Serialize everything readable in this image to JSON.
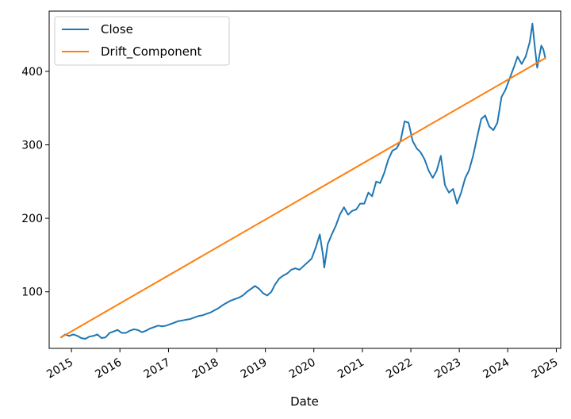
{
  "chart_data": {
    "type": "line",
    "title": "",
    "xlabel": "Date",
    "ylabel": "",
    "x_ticks": [
      "2015",
      "2016",
      "2017",
      "2018",
      "2019",
      "2020",
      "2021",
      "2022",
      "2023",
      "2024",
      "2025"
    ],
    "y_ticks": [
      100,
      200,
      300,
      400
    ],
    "xlim": [
      "2014-07-17",
      "2025-02-03"
    ],
    "ylim": [
      23,
      482
    ],
    "grid": false,
    "legend": {
      "position": "top-left"
    },
    "colors": {
      "Close": "#1f77b4",
      "Drift_Component": "#ff7f0e"
    },
    "series": [
      {
        "name": "Close",
        "points": [
          [
            "2014-10-15",
            38
          ],
          [
            "2014-11-15",
            42
          ],
          [
            "2014-12-15",
            40
          ],
          [
            "2015-01-15",
            42
          ],
          [
            "2015-02-15",
            40
          ],
          [
            "2015-03-15",
            37
          ],
          [
            "2015-04-15",
            36
          ],
          [
            "2015-05-15",
            39
          ],
          [
            "2015-06-15",
            40
          ],
          [
            "2015-07-15",
            42
          ],
          [
            "2015-08-15",
            37
          ],
          [
            "2015-09-15",
            38
          ],
          [
            "2015-10-15",
            44
          ],
          [
            "2015-11-15",
            46
          ],
          [
            "2015-12-15",
            48
          ],
          [
            "2016-01-15",
            44
          ],
          [
            "2016-02-15",
            44
          ],
          [
            "2016-03-15",
            47
          ],
          [
            "2016-04-15",
            49
          ],
          [
            "2016-05-15",
            48
          ],
          [
            "2016-06-15",
            45
          ],
          [
            "2016-07-15",
            47
          ],
          [
            "2016-08-15",
            50
          ],
          [
            "2016-09-15",
            52
          ],
          [
            "2016-10-15",
            54
          ],
          [
            "2016-11-15",
            53
          ],
          [
            "2016-12-15",
            54
          ],
          [
            "2017-01-15",
            56
          ],
          [
            "2017-02-15",
            58
          ],
          [
            "2017-03-15",
            60
          ],
          [
            "2017-04-15",
            61
          ],
          [
            "2017-05-15",
            62
          ],
          [
            "2017-06-15",
            63
          ],
          [
            "2017-07-15",
            65
          ],
          [
            "2017-08-15",
            67
          ],
          [
            "2017-09-15",
            68
          ],
          [
            "2017-10-15",
            70
          ],
          [
            "2017-11-15",
            72
          ],
          [
            "2017-12-15",
            75
          ],
          [
            "2018-01-15",
            78
          ],
          [
            "2018-02-15",
            82
          ],
          [
            "2018-03-15",
            85
          ],
          [
            "2018-04-15",
            88
          ],
          [
            "2018-05-15",
            90
          ],
          [
            "2018-06-15",
            92
          ],
          [
            "2018-07-15",
            95
          ],
          [
            "2018-08-15",
            100
          ],
          [
            "2018-09-15",
            104
          ],
          [
            "2018-10-15",
            108
          ],
          [
            "2018-11-15",
            104
          ],
          [
            "2018-12-15",
            98
          ],
          [
            "2019-01-15",
            95
          ],
          [
            "2019-02-15",
            100
          ],
          [
            "2019-03-15",
            110
          ],
          [
            "2019-04-15",
            118
          ],
          [
            "2019-05-15",
            122
          ],
          [
            "2019-06-15",
            125
          ],
          [
            "2019-07-15",
            130
          ],
          [
            "2019-08-15",
            132
          ],
          [
            "2019-09-15",
            130
          ],
          [
            "2019-10-15",
            135
          ],
          [
            "2019-11-15",
            140
          ],
          [
            "2019-12-15",
            145
          ],
          [
            "2020-01-15",
            160
          ],
          [
            "2020-02-15",
            178
          ],
          [
            "2020-03-10",
            150
          ],
          [
            "2020-03-20",
            133
          ],
          [
            "2020-04-15",
            165
          ],
          [
            "2020-05-15",
            178
          ],
          [
            "2020-06-15",
            190
          ],
          [
            "2020-07-15",
            205
          ],
          [
            "2020-08-15",
            215
          ],
          [
            "2020-09-15",
            205
          ],
          [
            "2020-10-15",
            210
          ],
          [
            "2020-11-15",
            212
          ],
          [
            "2020-12-15",
            220
          ],
          [
            "2021-01-15",
            220
          ],
          [
            "2021-02-15",
            235
          ],
          [
            "2021-03-15",
            230
          ],
          [
            "2021-04-15",
            250
          ],
          [
            "2021-05-15",
            248
          ],
          [
            "2021-06-15",
            262
          ],
          [
            "2021-07-15",
            280
          ],
          [
            "2021-08-15",
            292
          ],
          [
            "2021-09-15",
            295
          ],
          [
            "2021-10-15",
            305
          ],
          [
            "2021-11-15",
            332
          ],
          [
            "2021-12-15",
            330
          ],
          [
            "2022-01-15",
            305
          ],
          [
            "2022-02-15",
            295
          ],
          [
            "2022-03-15",
            290
          ],
          [
            "2022-04-15",
            280
          ],
          [
            "2022-05-15",
            265
          ],
          [
            "2022-06-15",
            255
          ],
          [
            "2022-07-15",
            265
          ],
          [
            "2022-08-15",
            285
          ],
          [
            "2022-09-15",
            245
          ],
          [
            "2022-10-15",
            235
          ],
          [
            "2022-11-15",
            240
          ],
          [
            "2022-12-15",
            220
          ],
          [
            "2023-01-15",
            235
          ],
          [
            "2023-02-15",
            255
          ],
          [
            "2023-03-15",
            265
          ],
          [
            "2023-04-15",
            285
          ],
          [
            "2023-05-15",
            310
          ],
          [
            "2023-06-15",
            335
          ],
          [
            "2023-07-15",
            340
          ],
          [
            "2023-08-15",
            325
          ],
          [
            "2023-09-15",
            320
          ],
          [
            "2023-10-15",
            330
          ],
          [
            "2023-11-15",
            365
          ],
          [
            "2023-12-15",
            375
          ],
          [
            "2024-01-15",
            390
          ],
          [
            "2024-02-15",
            405
          ],
          [
            "2024-03-15",
            420
          ],
          [
            "2024-04-15",
            410
          ],
          [
            "2024-05-15",
            420
          ],
          [
            "2024-06-15",
            440
          ],
          [
            "2024-07-05",
            465
          ],
          [
            "2024-07-25",
            430
          ],
          [
            "2024-08-10",
            405
          ],
          [
            "2024-08-25",
            420
          ],
          [
            "2024-09-10",
            435
          ],
          [
            "2024-09-25",
            430
          ],
          [
            "2024-10-10",
            418
          ]
        ]
      },
      {
        "name": "Drift_Component",
        "points": [
          [
            "2014-10-15",
            38
          ],
          [
            "2024-10-10",
            418
          ]
        ]
      }
    ]
  }
}
